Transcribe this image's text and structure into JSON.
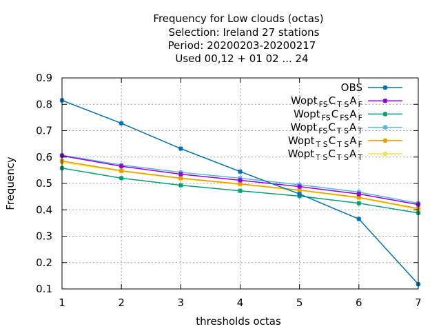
{
  "chart_data": {
    "type": "line",
    "title_lines": [
      "Frequency  for Low clouds (octas)",
      "Selection: Ireland      27 stations",
      "Period: 20200203-20200217",
      "Used  00,12  + 01 02 ... 24"
    ],
    "xlabel": "thresholds octas",
    "ylabel": "Frequency",
    "x": [
      1,
      2,
      3,
      4,
      5,
      6,
      7
    ],
    "xlim": [
      1,
      7
    ],
    "ylim": [
      0.1,
      0.9
    ],
    "x_ticks": [
      "1",
      "2",
      "3",
      "4",
      "5",
      "6",
      "7"
    ],
    "y_ticks": [
      "0.1",
      "0.2",
      "0.3",
      "0.4",
      "0.5",
      "0.6",
      "0.7",
      "0.8",
      "0.9"
    ],
    "grid": true,
    "legend_position": "top-right",
    "series": [
      {
        "name": "OBS",
        "label_parts": [
          {
            "t": "OBS",
            "sub": false
          }
        ],
        "color": "#0072b2",
        "values": [
          0.815,
          0.728,
          0.632,
          0.545,
          0.46,
          0.365,
          0.118
        ]
      },
      {
        "name": "Wopt FS CTS AF",
        "label_parts": [
          {
            "t": "Wopt",
            "sub": false
          },
          {
            "t": "FS",
            "sub": true
          },
          {
            "t": "C",
            "sub": false
          },
          {
            "t": "T S",
            "sub": true
          },
          {
            "t": "A",
            "sub": false
          },
          {
            "t": "F",
            "sub": true
          }
        ],
        "color": "#9400d3",
        "values": [
          0.605,
          0.565,
          0.535,
          0.512,
          0.488,
          0.46,
          0.42
        ]
      },
      {
        "name": "Wopt FS CFS AF",
        "label_parts": [
          {
            "t": "Wopt",
            "sub": false
          },
          {
            "t": "FS",
            "sub": true
          },
          {
            "t": "C",
            "sub": false
          },
          {
            "t": "FS",
            "sub": true
          },
          {
            "t": "A",
            "sub": false
          },
          {
            "t": "F",
            "sub": true
          }
        ],
        "color": "#009e73",
        "values": [
          0.558,
          0.52,
          0.493,
          0.472,
          0.452,
          0.425,
          0.388
        ]
      },
      {
        "name": "Wopt FS CTS AT",
        "label_parts": [
          {
            "t": "Wopt",
            "sub": false
          },
          {
            "t": "FS",
            "sub": true
          },
          {
            "t": "C",
            "sub": false
          },
          {
            "t": "T S",
            "sub": true
          },
          {
            "t": "A",
            "sub": false
          },
          {
            "t": "T",
            "sub": true
          }
        ],
        "color": "#56b4e9",
        "values": [
          0.607,
          0.57,
          0.542,
          0.52,
          0.495,
          0.467,
          0.425
        ]
      },
      {
        "name": "Wopt TS CTS AF",
        "label_parts": [
          {
            "t": "Wopt",
            "sub": false
          },
          {
            "t": "T S",
            "sub": true
          },
          {
            "t": "C",
            "sub": false
          },
          {
            "t": "T S",
            "sub": true
          },
          {
            "t": "A",
            "sub": false
          },
          {
            "t": "F",
            "sub": true
          }
        ],
        "color": "#e69f00",
        "values": [
          0.585,
          0.548,
          0.52,
          0.498,
          0.475,
          0.447,
          0.405
        ]
      },
      {
        "name": "Wopt TS CTS AT",
        "label_parts": [
          {
            "t": "Wopt",
            "sub": false
          },
          {
            "t": "T S",
            "sub": true
          },
          {
            "t": "C",
            "sub": false
          },
          {
            "t": "T S",
            "sub": true
          },
          {
            "t": "A",
            "sub": false
          },
          {
            "t": "T",
            "sub": true
          }
        ],
        "color": "#f0e442",
        "values": [
          0.58,
          0.546,
          0.518,
          0.496,
          0.473,
          0.445,
          0.402
        ]
      }
    ]
  }
}
